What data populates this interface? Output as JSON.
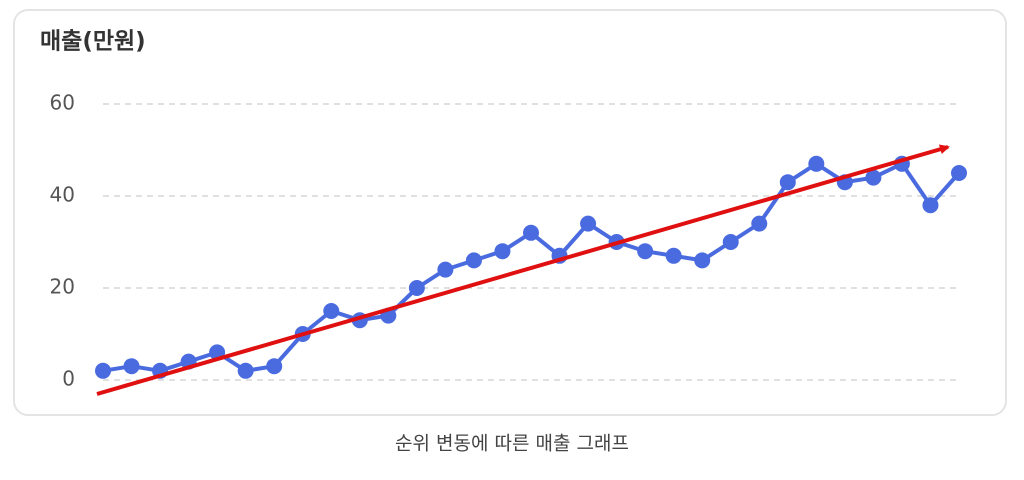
{
  "chart_data": {
    "type": "line",
    "title": "매출(만원)",
    "caption": "순위 변동에 따른 매출 그래프",
    "categories": [
      null,
      null,
      null,
      null,
      null,
      null,
      null,
      null,
      null,
      null,
      null,
      null,
      null,
      null,
      null,
      null,
      null,
      null,
      null,
      null,
      null,
      null,
      null,
      null,
      null,
      null,
      null,
      null,
      null,
      null,
      null
    ],
    "values": [
      2,
      3,
      2,
      4,
      6,
      2,
      3,
      10,
      15,
      13,
      14,
      20,
      24,
      26,
      28,
      32,
      27,
      34,
      30,
      28,
      27,
      26,
      30,
      34,
      43,
      47,
      43,
      44,
      47,
      38,
      45
    ],
    "color": "#4a6be0",
    "ylim": [
      0,
      60
    ],
    "yticks": [
      0,
      20,
      40,
      60
    ],
    "grid": true
  }
}
